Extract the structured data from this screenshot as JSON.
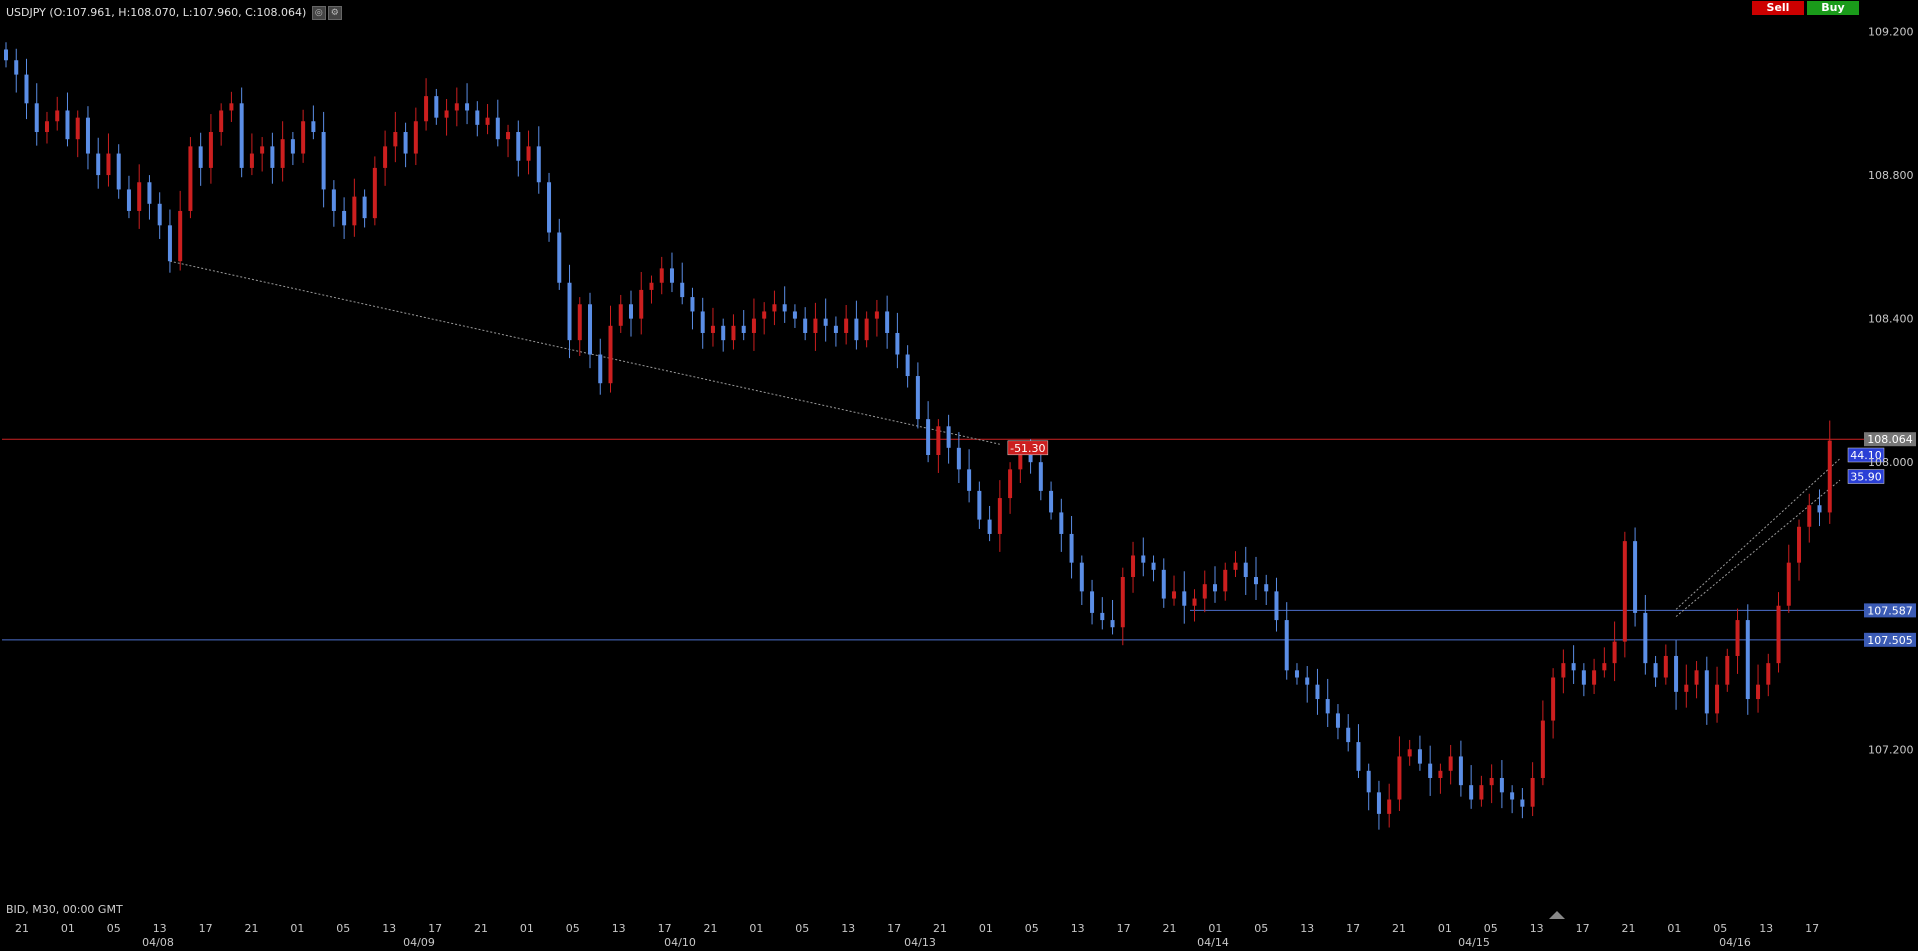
{
  "header": {
    "title": "USDJPY (O:107.961, H:108.070, L:107.960, C:108.064)",
    "settings_icon": "gear-icon",
    "target_icon": "target-icon"
  },
  "trade": {
    "sell_label": "Sell",
    "buy_label": "Buy",
    "sell_color": "#cc0000",
    "buy_color": "#1a9b1a"
  },
  "footer": {
    "mode_label": "BID, M30, 00:00 GMT"
  },
  "chart_data": {
    "type": "candlestick",
    "symbol": "USDJPY",
    "timeframe": "M30",
    "colors": {
      "up": "#cc1f1f",
      "down": "#5b8ee6",
      "price_line": "#cc2222",
      "level_line": "#4d6fcc"
    },
    "ylim": [
      106.78,
      109.26
    ],
    "y_ticks": [
      "109.200",
      "108.800",
      "108.400",
      "108.000",
      "107.200"
    ],
    "x_hour_ticks": [
      "21",
      "01",
      "05",
      "13",
      "17",
      "21",
      "01",
      "05",
      "13",
      "17",
      "21",
      "01",
      "05",
      "13",
      "17",
      "21",
      "01",
      "05",
      "13",
      "17",
      "21",
      "01",
      "05",
      "13",
      "17",
      "21",
      "01",
      "05",
      "13",
      "17",
      "21",
      "01",
      "05",
      "13",
      "17",
      "21",
      "01",
      "05",
      "13",
      "17"
    ],
    "x_date_ticks": [
      "04/08",
      "04/09",
      "04/10",
      "04/13",
      "04/14",
      "04/15",
      "04/16"
    ],
    "last_price": "108.064",
    "levels": [
      {
        "label": "107.587",
        "price": 107.587
      },
      {
        "label": "107.505",
        "price": 107.505
      }
    ],
    "markers": [
      {
        "label": "-51.30",
        "x_bar": 97,
        "price": 108.04
      },
      {
        "label": "44.10",
        "x_bar": 179,
        "price": 108.02
      },
      {
        "label": "35.90",
        "x_bar": 179,
        "price": 107.96
      }
    ],
    "trend_lines": [
      {
        "from_bar": 16,
        "from_price": 108.56,
        "to_bar": 97,
        "to_price": 108.05
      },
      {
        "from_bar": 163,
        "from_price": 107.59,
        "to_bar": 179,
        "to_price": 108.01
      },
      {
        "from_bar": 163,
        "from_price": 107.57,
        "to_bar": 179,
        "to_price": 107.95
      }
    ],
    "closes": [
      109.12,
      109.08,
      109.0,
      108.92,
      108.95,
      108.98,
      108.9,
      108.96,
      108.86,
      108.8,
      108.86,
      108.76,
      108.7,
      108.78,
      108.72,
      108.66,
      108.56,
      108.7,
      108.88,
      108.82,
      108.92,
      108.98,
      109.0,
      108.82,
      108.86,
      108.88,
      108.82,
      108.9,
      108.86,
      108.95,
      108.92,
      108.76,
      108.7,
      108.66,
      108.74,
      108.68,
      108.82,
      108.88,
      108.92,
      108.86,
      108.95,
      109.02,
      108.96,
      108.98,
      109.0,
      108.98,
      108.94,
      108.96,
      108.9,
      108.92,
      108.84,
      108.88,
      108.78,
      108.64,
      108.5,
      108.34,
      108.44,
      108.3,
      108.22,
      108.38,
      108.44,
      108.4,
      108.48,
      108.5,
      108.54,
      108.5,
      108.46,
      108.42,
      108.36,
      108.38,
      108.34,
      108.38,
      108.36,
      108.4,
      108.42,
      108.44,
      108.42,
      108.4,
      108.36,
      108.4,
      108.38,
      108.36,
      108.4,
      108.34,
      108.4,
      108.42,
      108.36,
      108.3,
      108.24,
      108.12,
      108.02,
      108.1,
      108.04,
      107.98,
      107.92,
      107.84,
      107.8,
      107.9,
      107.98,
      108.02,
      108.0,
      107.92,
      107.86,
      107.8,
      107.72,
      107.64,
      107.58,
      107.56,
      107.54,
      107.68,
      107.74,
      107.72,
      107.7,
      107.62,
      107.64,
      107.6,
      107.62,
      107.66,
      107.64,
      107.7,
      107.72,
      107.68,
      107.66,
      107.64,
      107.56,
      107.42,
      107.4,
      107.38,
      107.34,
      107.3,
      107.26,
      107.22,
      107.14,
      107.08,
      107.02,
      107.06,
      107.18,
      107.2,
      107.16,
      107.12,
      107.14,
      107.18,
      107.1,
      107.06,
      107.1,
      107.12,
      107.08,
      107.06,
      107.04,
      107.12,
      107.28,
      107.4,
      107.44,
      107.42,
      107.38,
      107.42,
      107.44,
      107.5,
      107.78,
      107.58,
      107.44,
      107.4,
      107.46,
      107.36,
      107.38,
      107.42,
      107.3,
      107.38,
      107.46,
      107.56,
      107.34,
      107.38,
      107.44,
      107.6,
      107.72,
      107.82,
      107.88,
      107.86,
      108.06
    ]
  }
}
